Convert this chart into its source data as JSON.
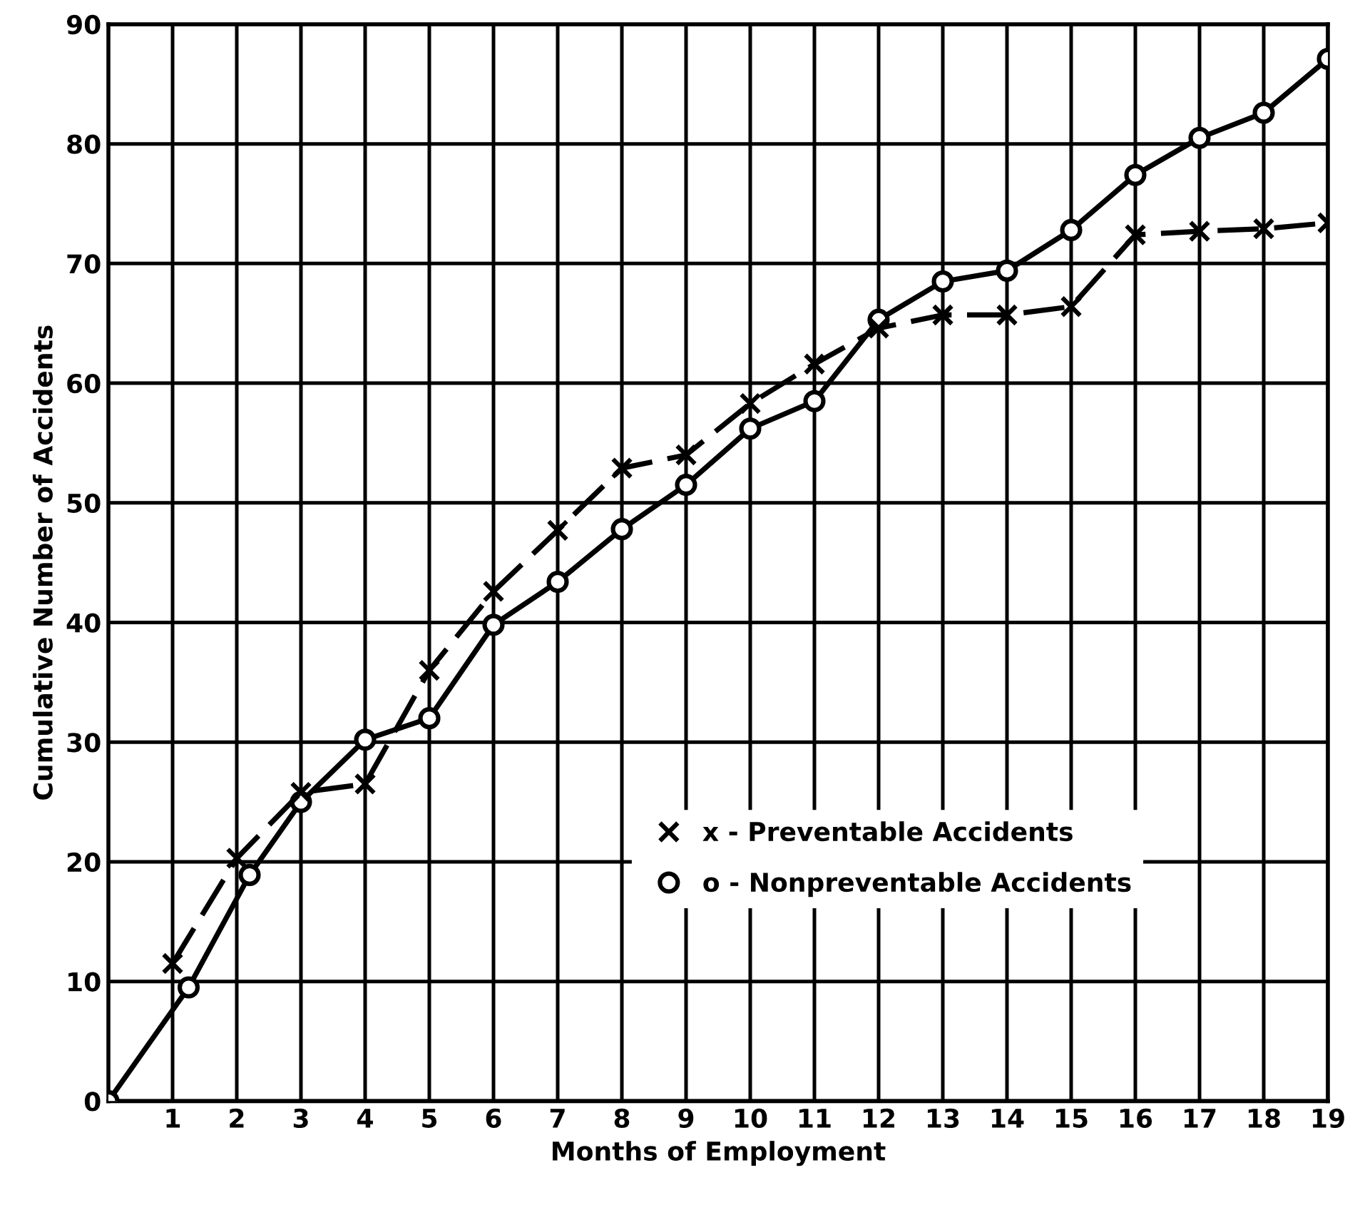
{
  "chart_data": {
    "type": "line",
    "xlabel": "Months of Employment",
    "ylabel": "Cumulative Number of Accidents",
    "xlim": [
      0,
      19
    ],
    "xticks": [
      1,
      2,
      3,
      4,
      5,
      6,
      7,
      8,
      9,
      10,
      11,
      12,
      13,
      14,
      15,
      16,
      17,
      18,
      19
    ],
    "ylim": [
      0,
      90
    ],
    "yticks": [
      0,
      10,
      20,
      30,
      40,
      50,
      60,
      70,
      80,
      90
    ],
    "grid": true,
    "legend": "bottom right",
    "series": [
      {
        "name": "x - Preventable Accidents",
        "color": "#000000",
        "marker": "cross",
        "line_style": "dashed",
        "x": [
          1,
          2,
          3,
          4,
          5,
          6,
          7,
          8,
          9,
          10,
          11,
          12,
          13,
          14,
          15,
          16,
          17,
          18,
          19
        ],
        "values": [
          11.5,
          20.3,
          25.8,
          26.5,
          36,
          42.6,
          47.7,
          52.9,
          54,
          58.3,
          61.6,
          64.6,
          65.7,
          65.7,
          66.4,
          72.4,
          72.7,
          72.9,
          73.4
        ]
      },
      {
        "name": "o - Nonpreventable Accidents",
        "color": "#000000",
        "marker": "circle",
        "line_style": "solid",
        "x": [
          0,
          1.25,
          2.2,
          3,
          4,
          5,
          6,
          7,
          8,
          9,
          10,
          11,
          12,
          13,
          14,
          15,
          16,
          17,
          18,
          19
        ],
        "values": [
          0,
          9.5,
          18.9,
          25,
          30.2,
          32,
          39.8,
          43.4,
          47.8,
          51.5,
          56.2,
          58.5,
          65.3,
          68.5,
          69.4,
          72.8,
          77.4,
          80.5,
          82.6,
          87.1
        ]
      }
    ]
  }
}
